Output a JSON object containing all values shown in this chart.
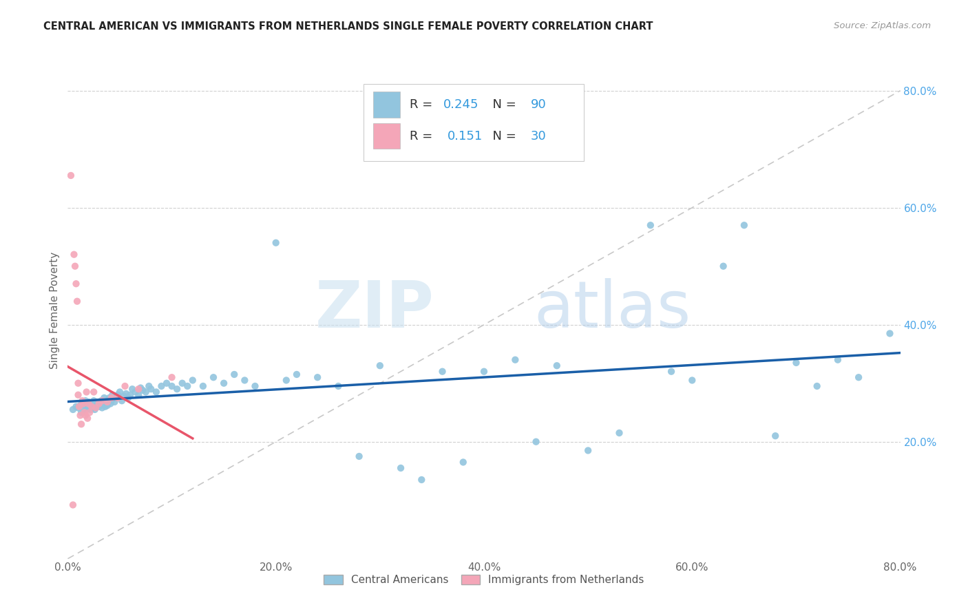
{
  "title": "CENTRAL AMERICAN VS IMMIGRANTS FROM NETHERLANDS SINGLE FEMALE POVERTY CORRELATION CHART",
  "source": "Source: ZipAtlas.com",
  "ylabel": "Single Female Poverty",
  "legend_label1": "Central Americans",
  "legend_label2": "Immigrants from Netherlands",
  "R1": 0.245,
  "N1": 90,
  "R2": 0.151,
  "N2": 30,
  "color_blue": "#92c5de",
  "color_pink": "#f4a6b8",
  "color_blue_line": "#1a5fa8",
  "color_pink_line": "#e8556a",
  "color_diag": "#c8c8c8",
  "watermark_zip": "ZIP",
  "watermark_atlas": "atlas",
  "xlim": [
    0.0,
    0.8
  ],
  "ylim": [
    0.0,
    0.85
  ],
  "blue_scatter_x": [
    0.005,
    0.008,
    0.01,
    0.012,
    0.013,
    0.015,
    0.016,
    0.017,
    0.018,
    0.019,
    0.02,
    0.021,
    0.022,
    0.023,
    0.024,
    0.025,
    0.026,
    0.027,
    0.028,
    0.03,
    0.031,
    0.032,
    0.033,
    0.035,
    0.036,
    0.037,
    0.038,
    0.04,
    0.041,
    0.042,
    0.043,
    0.045,
    0.046,
    0.048,
    0.05,
    0.052,
    0.054,
    0.056,
    0.058,
    0.06,
    0.062,
    0.065,
    0.068,
    0.07,
    0.072,
    0.075,
    0.078,
    0.08,
    0.085,
    0.09,
    0.095,
    0.1,
    0.105,
    0.11,
    0.115,
    0.12,
    0.13,
    0.14,
    0.15,
    0.16,
    0.17,
    0.18,
    0.2,
    0.21,
    0.22,
    0.24,
    0.26,
    0.28,
    0.3,
    0.32,
    0.34,
    0.36,
    0.38,
    0.4,
    0.43,
    0.45,
    0.47,
    0.5,
    0.53,
    0.56,
    0.58,
    0.6,
    0.63,
    0.65,
    0.68,
    0.7,
    0.72,
    0.74,
    0.76,
    0.79
  ],
  "blue_scatter_y": [
    0.255,
    0.26,
    0.258,
    0.262,
    0.25,
    0.265,
    0.258,
    0.27,
    0.255,
    0.26,
    0.268,
    0.26,
    0.255,
    0.265,
    0.26,
    0.27,
    0.255,
    0.262,
    0.268,
    0.26,
    0.265,
    0.27,
    0.258,
    0.275,
    0.26,
    0.268,
    0.262,
    0.275,
    0.265,
    0.27,
    0.28,
    0.268,
    0.275,
    0.28,
    0.285,
    0.27,
    0.278,
    0.282,
    0.275,
    0.28,
    0.29,
    0.285,
    0.28,
    0.292,
    0.288,
    0.285,
    0.295,
    0.29,
    0.285,
    0.295,
    0.3,
    0.295,
    0.29,
    0.3,
    0.295,
    0.305,
    0.295,
    0.31,
    0.3,
    0.315,
    0.305,
    0.295,
    0.54,
    0.305,
    0.315,
    0.31,
    0.295,
    0.175,
    0.33,
    0.155,
    0.135,
    0.32,
    0.165,
    0.32,
    0.34,
    0.2,
    0.33,
    0.185,
    0.215,
    0.57,
    0.32,
    0.305,
    0.5,
    0.57,
    0.21,
    0.335,
    0.295,
    0.34,
    0.31,
    0.385
  ],
  "pink_scatter_x": [
    0.003,
    0.005,
    0.006,
    0.007,
    0.008,
    0.009,
    0.01,
    0.01,
    0.011,
    0.012,
    0.013,
    0.014,
    0.015,
    0.016,
    0.017,
    0.018,
    0.019,
    0.02,
    0.021,
    0.023,
    0.025,
    0.027,
    0.03,
    0.033,
    0.038,
    0.042,
    0.048,
    0.055,
    0.068,
    0.1
  ],
  "pink_scatter_y": [
    0.655,
    0.092,
    0.52,
    0.5,
    0.47,
    0.44,
    0.3,
    0.28,
    0.26,
    0.245,
    0.23,
    0.27,
    0.265,
    0.25,
    0.245,
    0.285,
    0.24,
    0.265,
    0.25,
    0.26,
    0.285,
    0.258,
    0.265,
    0.27,
    0.268,
    0.275,
    0.275,
    0.295,
    0.29,
    0.31
  ]
}
